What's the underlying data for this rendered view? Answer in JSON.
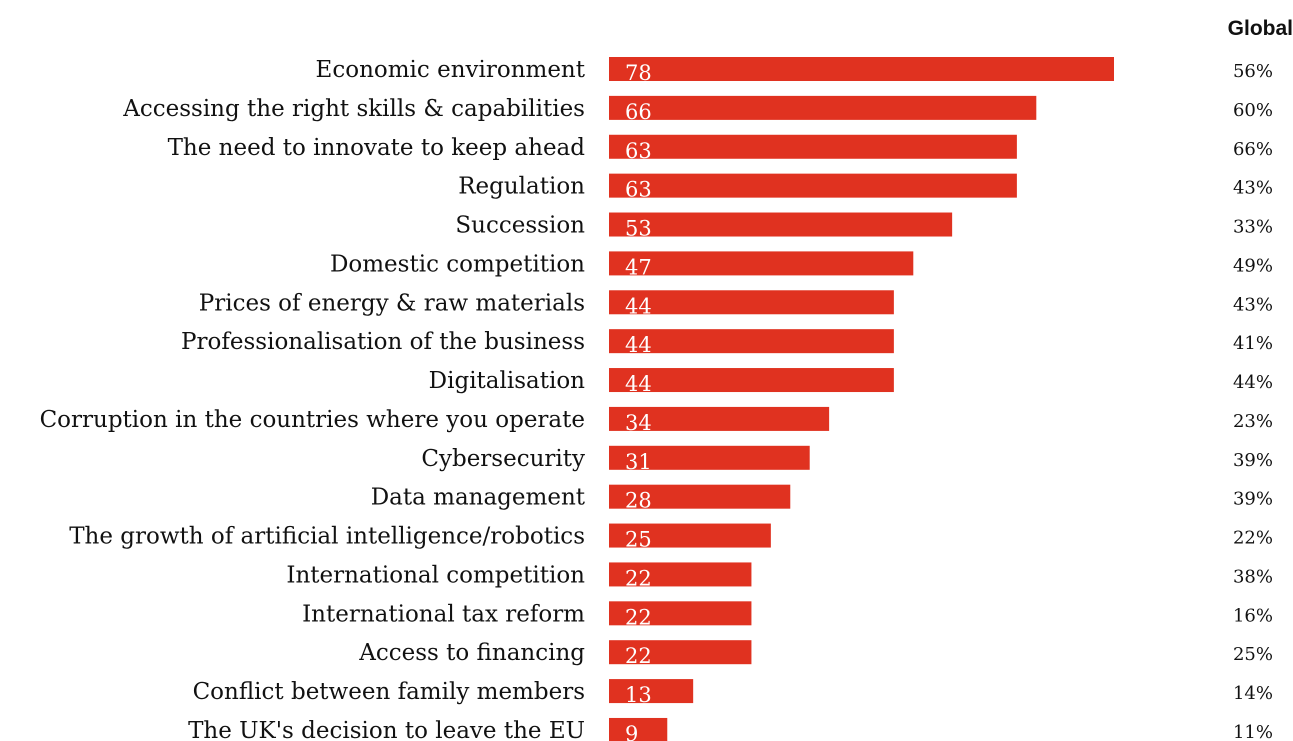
{
  "chart_data": {
    "type": "bar",
    "orientation": "horizontal",
    "title": "",
    "xlabel": "",
    "ylabel": "",
    "bar_color": "#e03220",
    "xlim": [
      0,
      78
    ],
    "grid": false,
    "legend": "none",
    "categories": [
      "Economic environment",
      "Accessing the right skills & capabilities",
      "The need to innovate to keep ahead",
      "Regulation",
      "Succession",
      "Domestic competition",
      "Prices of energy & raw materials",
      "Professionalisation of the business",
      "Digitalisation",
      "Corruption in the countries where you operate",
      "Cybersecurity",
      "Data management",
      "The growth of artificial intelligence/robotics",
      "International competition",
      "International tax reform",
      "Access to financing",
      "Conflict between family members",
      "The UK's decision to leave the EU"
    ],
    "values": [
      78,
      66,
      63,
      63,
      53,
      47,
      44,
      44,
      44,
      34,
      31,
      28,
      25,
      22,
      22,
      22,
      13,
      9
    ],
    "comparison_header": "Global",
    "comparison_values": [
      "56%",
      "60%",
      "66%",
      "43%",
      "33%",
      "49%",
      "43%",
      "41%",
      "44%",
      "23%",
      "39%",
      "39%",
      "22%",
      "38%",
      "16%",
      "25%",
      "14%",
      "11%"
    ]
  }
}
